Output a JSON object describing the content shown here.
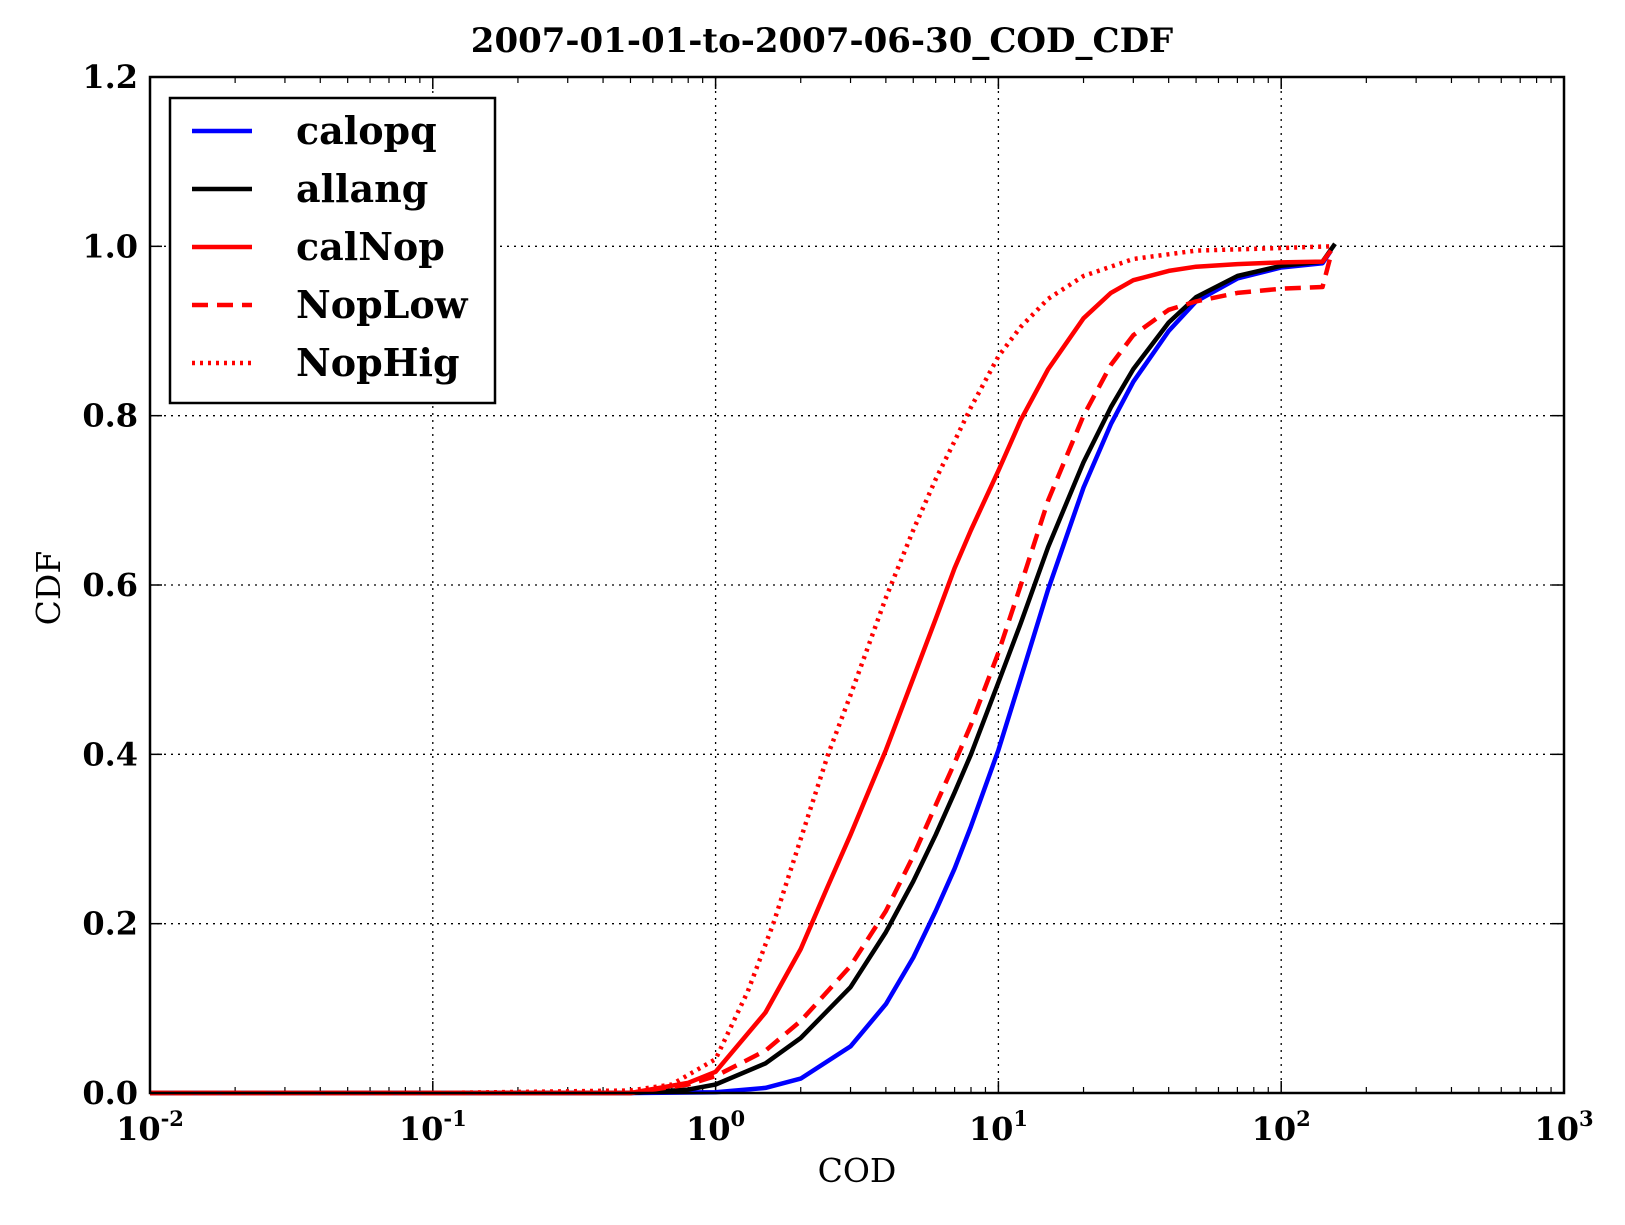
{
  "chart_data": {
    "type": "line",
    "title": "2007-01-01-to-2007-06-30_COD_CDF",
    "xlabel": "COD",
    "ylabel": "CDF",
    "xscale": "log",
    "xlim": [
      0.01,
      1000
    ],
    "ylim": [
      0,
      1.2
    ],
    "x_tick_labels": [
      {
        "base": "10",
        "exp": "-2"
      },
      {
        "base": "10",
        "exp": "-1"
      },
      {
        "base": "10",
        "exp": "0"
      },
      {
        "base": "10",
        "exp": "1"
      },
      {
        "base": "10",
        "exp": "2"
      },
      {
        "base": "10",
        "exp": "3"
      }
    ],
    "y_tick_labels": [
      "0.0",
      "0.2",
      "0.4",
      "0.6",
      "0.8",
      "1.0",
      "1.2"
    ],
    "grid": true,
    "legend_position": "top-left",
    "series": [
      {
        "name": "calopq",
        "color": "#0000ff",
        "style": "solid",
        "x": [
          0.01,
          0.1,
          0.5,
          1.0,
          1.5,
          2.0,
          3.0,
          4.0,
          5.0,
          6.0,
          7.0,
          8.0,
          10.0,
          12.0,
          15.0,
          20.0,
          25.0,
          30.0,
          40.0,
          50.0,
          70.0,
          100.0,
          140.0,
          150.0
        ],
        "y": [
          0.0,
          0.0,
          0.0,
          0.001,
          0.006,
          0.017,
          0.055,
          0.105,
          0.16,
          0.215,
          0.265,
          0.315,
          0.405,
          0.49,
          0.595,
          0.715,
          0.79,
          0.84,
          0.9,
          0.935,
          0.962,
          0.975,
          0.98,
          0.995
        ]
      },
      {
        "name": "allang",
        "color": "#000000",
        "style": "solid",
        "x": [
          0.01,
          0.1,
          0.5,
          0.8,
          1.0,
          1.5,
          2.0,
          3.0,
          4.0,
          5.0,
          6.0,
          7.0,
          8.0,
          10.0,
          12.0,
          15.0,
          20.0,
          25.0,
          30.0,
          40.0,
          50.0,
          70.0,
          100.0,
          140.0,
          155.0
        ],
        "y": [
          0.0,
          0.0,
          0.0,
          0.004,
          0.01,
          0.035,
          0.065,
          0.125,
          0.19,
          0.25,
          0.305,
          0.355,
          0.4,
          0.485,
          0.555,
          0.645,
          0.745,
          0.81,
          0.855,
          0.91,
          0.94,
          0.965,
          0.977,
          0.982,
          1.003
        ]
      },
      {
        "name": "calNop",
        "color": "#ff0000",
        "style": "solid",
        "x": [
          0.01,
          0.1,
          0.5,
          0.8,
          1.0,
          1.5,
          2.0,
          2.5,
          3.0,
          4.0,
          5.0,
          6.0,
          7.0,
          8.0,
          10.0,
          12.0,
          15.0,
          20.0,
          25.0,
          30.0,
          40.0,
          50.0,
          70.0,
          100.0,
          140.0,
          150.0
        ],
        "y": [
          0.0,
          0.0,
          0.0,
          0.012,
          0.025,
          0.095,
          0.17,
          0.245,
          0.305,
          0.405,
          0.49,
          0.56,
          0.62,
          0.665,
          0.735,
          0.795,
          0.855,
          0.915,
          0.945,
          0.96,
          0.971,
          0.976,
          0.979,
          0.981,
          0.982,
          0.995
        ]
      },
      {
        "name": "NopLow",
        "color": "#ff0000",
        "style": "dashed",
        "x": [
          0.01,
          0.1,
          0.5,
          0.8,
          1.0,
          1.5,
          2.0,
          3.0,
          4.0,
          5.0,
          6.0,
          7.0,
          8.0,
          10.0,
          12.0,
          15.0,
          20.0,
          25.0,
          30.0,
          40.0,
          50.0,
          70.0,
          100.0,
          140.0,
          150.0
        ],
        "y": [
          0.0,
          0.0,
          0.0,
          0.01,
          0.02,
          0.05,
          0.085,
          0.15,
          0.215,
          0.28,
          0.34,
          0.39,
          0.435,
          0.52,
          0.6,
          0.7,
          0.8,
          0.86,
          0.895,
          0.925,
          0.935,
          0.945,
          0.95,
          0.952,
          0.99
        ]
      },
      {
        "name": "NopHig",
        "color": "#ff0000",
        "style": "dotted",
        "x": [
          0.01,
          0.1,
          0.5,
          0.7,
          1.0,
          1.3,
          1.6,
          2.0,
          2.5,
          3.0,
          4.0,
          5.0,
          6.0,
          7.0,
          8.0,
          10.0,
          12.0,
          15.0,
          20.0,
          30.0,
          50.0,
          100.0,
          150.0
        ],
        "y": [
          0.0,
          0.0,
          0.003,
          0.01,
          0.04,
          0.12,
          0.2,
          0.3,
          0.4,
          0.47,
          0.585,
          0.665,
          0.725,
          0.77,
          0.81,
          0.87,
          0.905,
          0.938,
          0.965,
          0.985,
          0.995,
          0.998,
          1.0
        ]
      }
    ]
  }
}
